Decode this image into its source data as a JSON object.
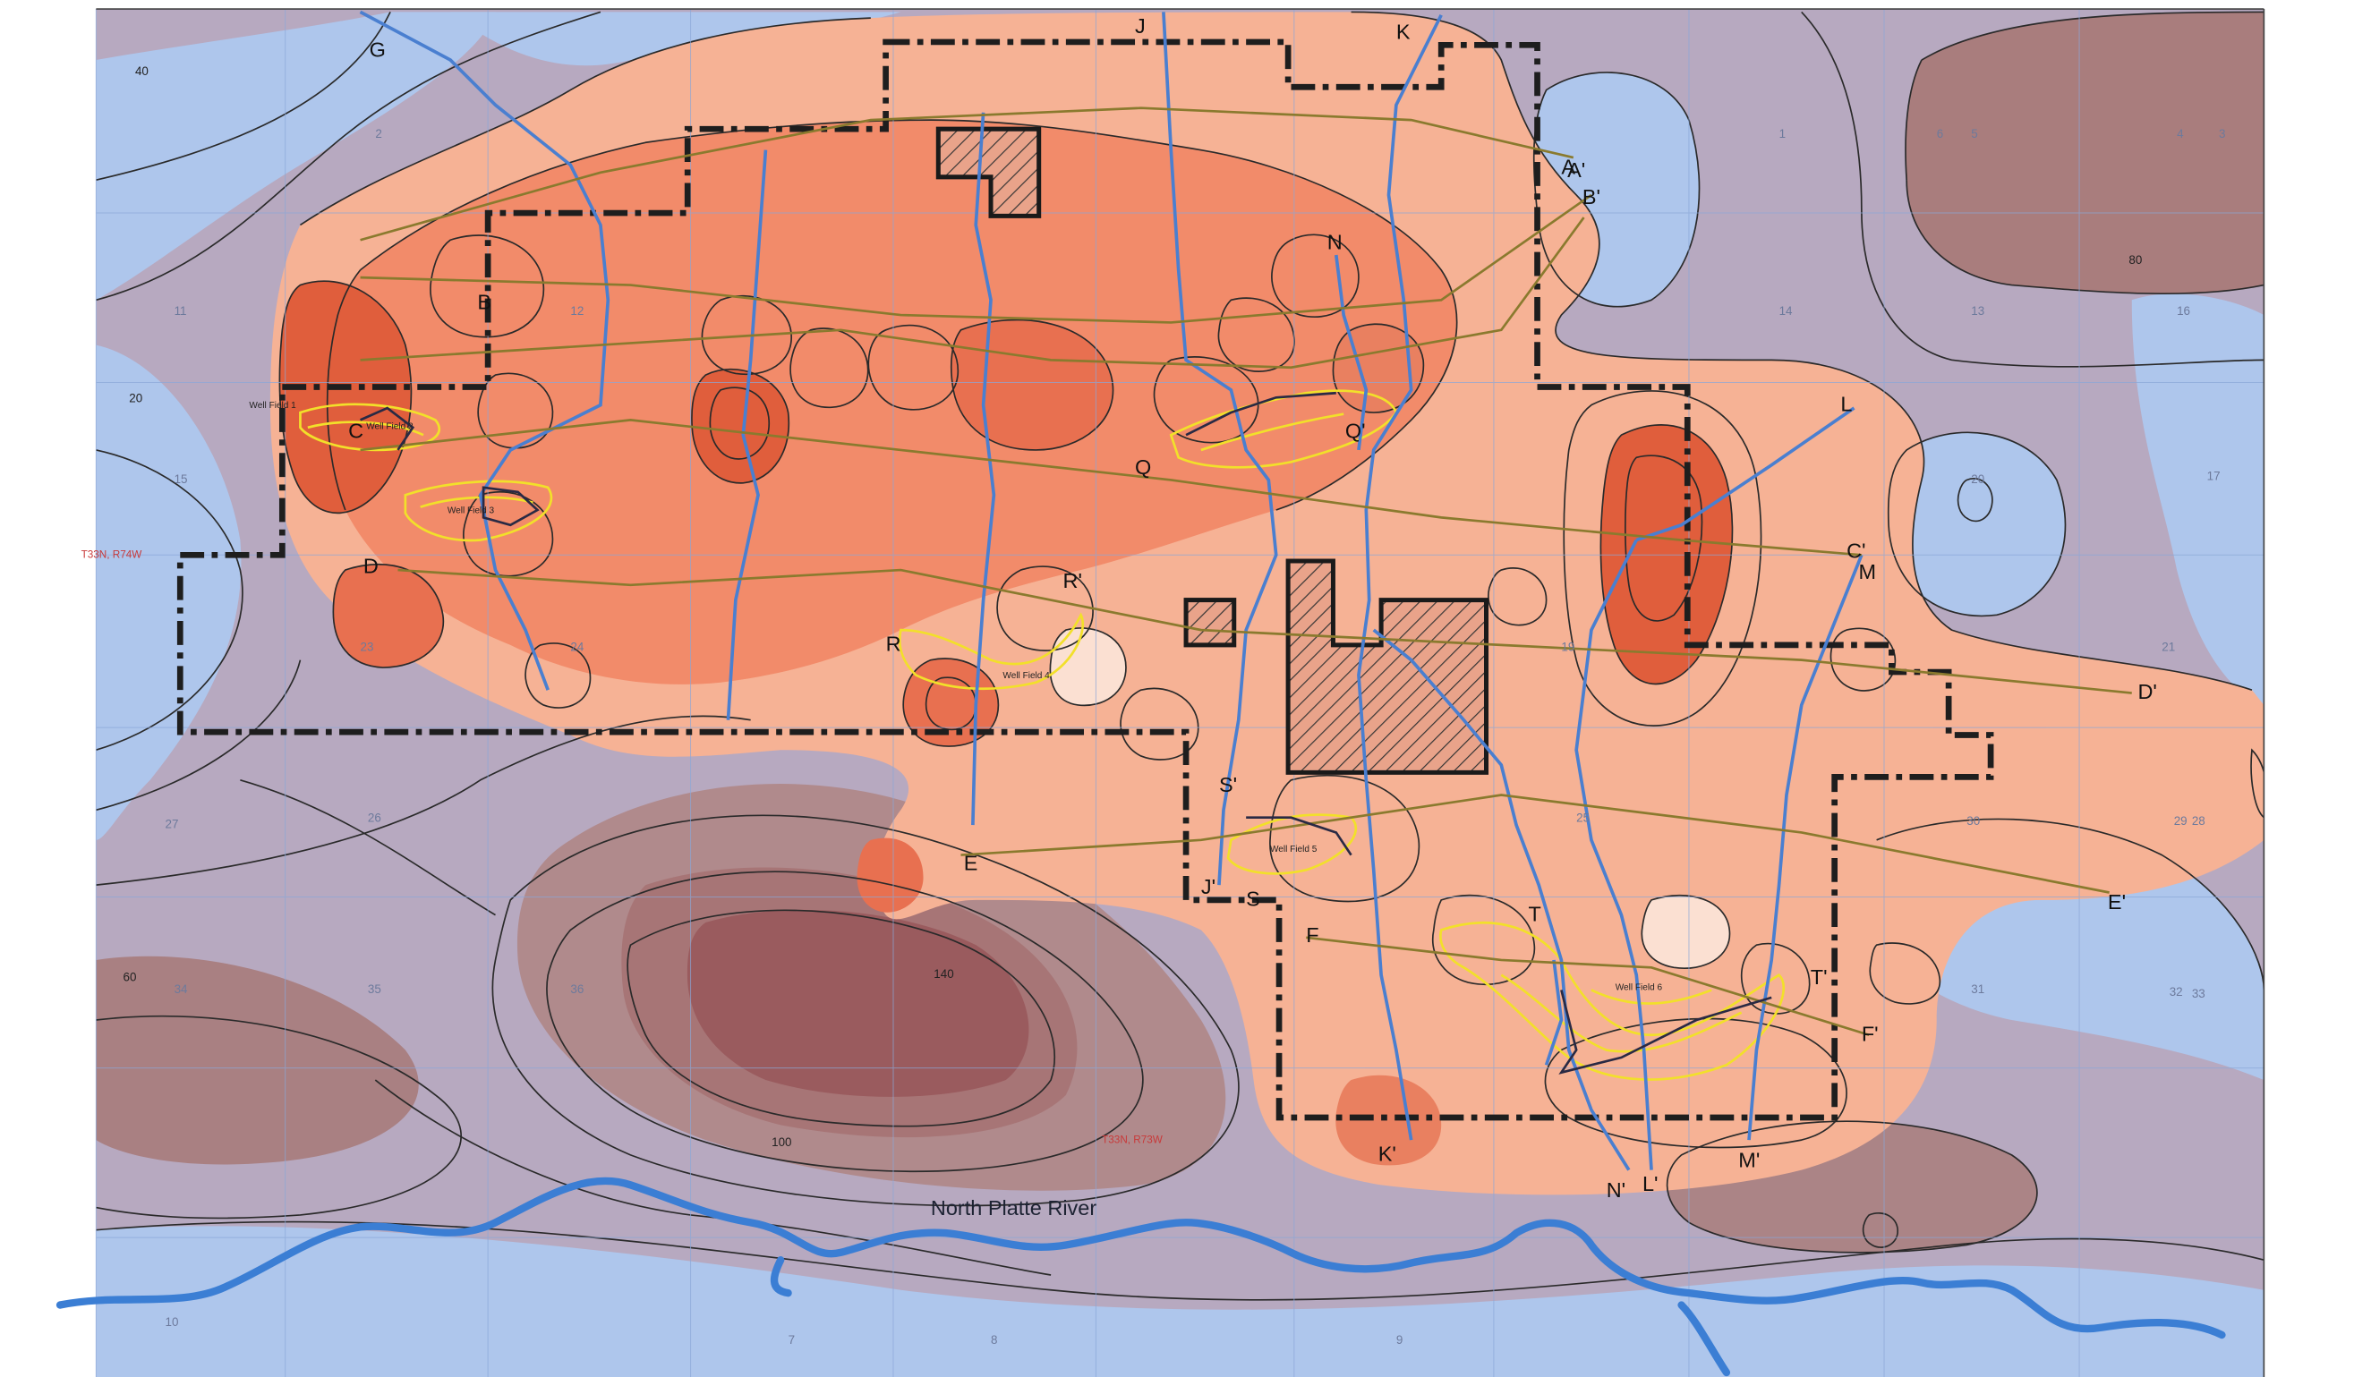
{
  "river": {
    "name": "North Platte River"
  },
  "section_lines": {
    "letters_start": [
      "A",
      "B",
      "C",
      "D",
      "E",
      "F",
      "G",
      "J",
      "K",
      "L",
      "M",
      "N",
      "Q",
      "R",
      "S",
      "T"
    ],
    "letters_end": [
      "A'",
      "B'",
      "C'",
      "D'",
      "E'",
      "F'",
      "J'",
      "K'",
      "L'",
      "M'",
      "N'",
      "Q'",
      "R'",
      "S'",
      "T'"
    ]
  },
  "well_fields": [
    "Well Field 1",
    "Well Field 2",
    "Well Field 3",
    "Well Field 4",
    "Well Field 5",
    "Well Field 6"
  ],
  "township_labels": [
    "T33N, R74W",
    "T33N, R73W"
  ],
  "contour_labels": [
    "20",
    "40",
    "60",
    "100",
    "140",
    "80"
  ],
  "section_numbers": [
    "2",
    "1",
    "6",
    "5",
    "4",
    "3",
    "11",
    "12",
    "14",
    "13",
    "16",
    "17",
    "15",
    "23",
    "24",
    "19",
    "20",
    "21",
    "26",
    "25",
    "27",
    "29",
    "30",
    "28",
    "33",
    "34",
    "35",
    "36",
    "31",
    "32",
    "10",
    "9",
    "8",
    "7"
  ],
  "colors": {
    "low_blue": "#aec6ec",
    "mid_purple": "#b5a7bd",
    "brown": "#a97d7d",
    "dark_brown": "#9a5b5e",
    "orange_light": "#f6b295",
    "orange": "#f28b6a",
    "orange_dark": "#e05e3c",
    "permit_boundary": "#222222",
    "section_line_blue": "#4a7fd0",
    "section_line_olive": "#8a7a2e",
    "river": "#3b7ed4",
    "well_field": "#f2e02a"
  }
}
